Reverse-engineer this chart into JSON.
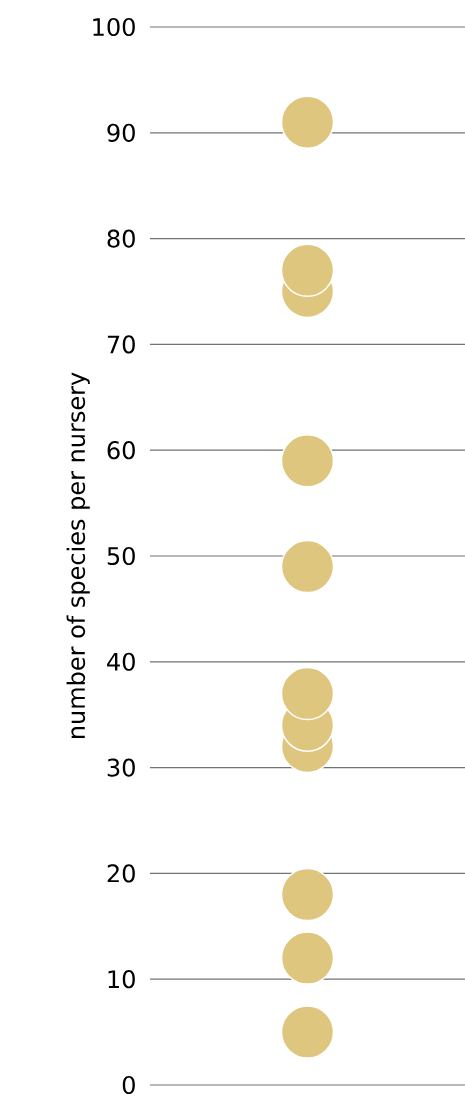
{
  "chart_data": {
    "type": "scatter",
    "ylabel": "number of species per nursery",
    "categories": [
      null
    ],
    "series": [
      {
        "color": "#dfc67e",
        "values": [
          5
        ]
      },
      {
        "color": "#dfc67e",
        "values": [
          12
        ]
      },
      {
        "color": "#dfc67e",
        "values": [
          18
        ]
      },
      {
        "color": "#dfc67e",
        "values": [
          32
        ]
      },
      {
        "color": "#dfc67e",
        "values": [
          34
        ]
      },
      {
        "color": "#dfc67e",
        "values": [
          37
        ]
      },
      {
        "color": "#dfc67e",
        "values": [
          49
        ]
      },
      {
        "color": "#dfc67e",
        "values": [
          59
        ]
      },
      {
        "color": "#dfc67e",
        "values": [
          75
        ]
      },
      {
        "color": "#dfc67e",
        "values": [
          77
        ]
      },
      {
        "color": "#dfc67e",
        "values": [
          91
        ]
      }
    ],
    "ylim": [
      0,
      100
    ],
    "yticks": [
      0,
      10,
      20,
      30,
      40,
      50,
      60,
      70,
      80,
      90,
      100
    ],
    "grid": "y",
    "tick_labels": "y"
  }
}
